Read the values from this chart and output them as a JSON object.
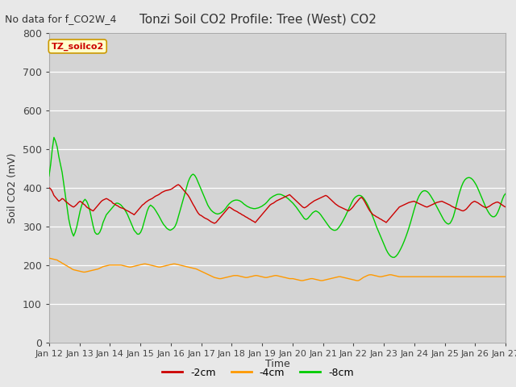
{
  "title": "Tonzi Soil CO2 Profile: Tree (West) CO2",
  "subtitle": "No data for f_CO2W_4",
  "xlabel": "Time",
  "ylabel": "Soil CO2 (mV)",
  "ylim": [
    0,
    800
  ],
  "yticks": [
    0,
    100,
    200,
    300,
    400,
    500,
    600,
    700,
    800
  ],
  "xtick_labels": [
    "Jan 12",
    "Jan 13",
    "Jan 14",
    "Jan 15",
    "Jan 16",
    "Jan 17",
    "Jan 18",
    "Jan 19",
    "Jan 20",
    "Jan 21",
    "Jan 22",
    "Jan 23",
    "Jan 24",
    "Jan 25",
    "Jan 26",
    "Jan 27"
  ],
  "legend_label": "TZ_soilco2",
  "line_colors": {
    "neg2cm": "#cc0000",
    "neg4cm": "#ff9900",
    "neg8cm": "#00cc00"
  },
  "bg_color": "#e8e8e8",
  "plot_bg_color": "#d4d4d4",
  "neg2cm_y": [
    400,
    397,
    390,
    380,
    375,
    370,
    365,
    368,
    372,
    370,
    365,
    362,
    358,
    355,
    352,
    350,
    353,
    357,
    362,
    365,
    362,
    358,
    355,
    350,
    347,
    345,
    342,
    340,
    345,
    350,
    355,
    360,
    365,
    368,
    370,
    372,
    370,
    367,
    365,
    360,
    358,
    355,
    353,
    350,
    348,
    347,
    345,
    342,
    340,
    338,
    335,
    333,
    330,
    335,
    340,
    345,
    350,
    355,
    358,
    362,
    365,
    368,
    370,
    372,
    375,
    378,
    380,
    382,
    385,
    388,
    390,
    392,
    393,
    394,
    395,
    397,
    400,
    403,
    406,
    408,
    405,
    400,
    395,
    390,
    385,
    380,
    373,
    365,
    357,
    350,
    342,
    335,
    330,
    328,
    325,
    322,
    320,
    318,
    315,
    312,
    310,
    308,
    310,
    315,
    320,
    325,
    330,
    335,
    340,
    345,
    350,
    348,
    345,
    342,
    340,
    338,
    335,
    333,
    330,
    328,
    325,
    323,
    320,
    318,
    315,
    313,
    310,
    315,
    320,
    325,
    330,
    335,
    340,
    345,
    350,
    355,
    358,
    360,
    363,
    366,
    368,
    370,
    372,
    374,
    376,
    378,
    380,
    382,
    378,
    374,
    370,
    366,
    362,
    358,
    354,
    350,
    348,
    350,
    353,
    357,
    360,
    363,
    366,
    368,
    370,
    372,
    374,
    376,
    378,
    380,
    378,
    374,
    370,
    366,
    362,
    358,
    355,
    352,
    350,
    348,
    346,
    344,
    342,
    340,
    343,
    347,
    352,
    358,
    363,
    368,
    373,
    375,
    370,
    363,
    355,
    347,
    340,
    335,
    330,
    328,
    325,
    323,
    320,
    318,
    315,
    313,
    310,
    315,
    320,
    325,
    330,
    335,
    340,
    345,
    350,
    352,
    354,
    356,
    358,
    360,
    362,
    363,
    364,
    365,
    363,
    361,
    359,
    357,
    355,
    353,
    351,
    350,
    352,
    354,
    356,
    358,
    360,
    362,
    363,
    364,
    365,
    363,
    361,
    359,
    357,
    355,
    352,
    350,
    348,
    346,
    345,
    343,
    341,
    340,
    342,
    345,
    350,
    355,
    360,
    363,
    365,
    363,
    361,
    358,
    355,
    352,
    350,
    348,
    350,
    352,
    355,
    358,
    360,
    362,
    363,
    361,
    358,
    355,
    352,
    350
  ],
  "neg4cm_y": [
    218,
    217,
    216,
    215,
    214,
    213,
    210,
    208,
    205,
    203,
    200,
    198,
    195,
    193,
    190,
    188,
    187,
    186,
    185,
    184,
    183,
    182,
    182,
    183,
    184,
    185,
    186,
    187,
    188,
    189,
    190,
    192,
    194,
    196,
    197,
    198,
    199,
    200,
    200,
    200,
    200,
    200,
    200,
    200,
    200,
    199,
    198,
    197,
    196,
    195,
    195,
    196,
    197,
    198,
    199,
    200,
    201,
    202,
    203,
    203,
    202,
    201,
    200,
    199,
    198,
    197,
    196,
    195,
    195,
    196,
    197,
    198,
    199,
    200,
    201,
    202,
    203,
    203,
    202,
    201,
    200,
    199,
    198,
    197,
    196,
    195,
    194,
    193,
    192,
    191,
    190,
    188,
    186,
    184,
    182,
    180,
    178,
    176,
    174,
    172,
    170,
    168,
    167,
    166,
    165,
    165,
    166,
    167,
    168,
    169,
    170,
    171,
    172,
    173,
    173,
    173,
    172,
    171,
    170,
    169,
    168,
    168,
    169,
    170,
    171,
    172,
    173,
    173,
    172,
    171,
    170,
    169,
    168,
    168,
    169,
    170,
    171,
    172,
    173,
    173,
    172,
    171,
    170,
    169,
    168,
    167,
    166,
    165,
    165,
    165,
    164,
    163,
    162,
    161,
    160,
    160,
    161,
    162,
    163,
    164,
    165,
    165,
    164,
    163,
    162,
    161,
    160,
    160,
    161,
    162,
    163,
    164,
    165,
    166,
    167,
    168,
    169,
    170,
    170,
    169,
    168,
    167,
    166,
    165,
    164,
    163,
    162,
    161,
    160,
    160,
    162,
    165,
    168,
    170,
    172,
    174,
    175,
    175,
    174,
    173,
    172,
    171,
    170,
    170,
    171,
    172,
    173,
    174,
    175,
    175,
    174,
    173,
    172,
    171,
    170,
    170,
    170,
    170,
    170,
    170,
    170,
    170,
    170,
    170,
    170,
    170,
    170,
    170,
    170,
    170,
    170,
    170,
    170,
    170,
    170,
    170,
    170,
    170,
    170,
    170,
    170,
    170,
    170,
    170,
    170,
    170,
    170,
    170,
    170,
    170,
    170,
    170,
    170,
    170,
    170,
    170,
    170,
    170,
    170,
    170,
    170,
    170,
    170,
    170,
    170,
    170,
    170,
    170,
    170,
    170,
    170,
    170,
    170,
    170,
    170,
    170,
    170,
    170,
    170,
    170
  ],
  "neg8cm_y": [
    430,
    460,
    500,
    530,
    520,
    505,
    480,
    460,
    440,
    410,
    380,
    350,
    320,
    300,
    285,
    275,
    285,
    300,
    320,
    340,
    355,
    365,
    370,
    365,
    355,
    340,
    320,
    300,
    285,
    280,
    280,
    285,
    295,
    310,
    320,
    330,
    335,
    340,
    345,
    350,
    355,
    360,
    360,
    358,
    355,
    350,
    345,
    338,
    330,
    320,
    310,
    300,
    290,
    285,
    280,
    280,
    285,
    295,
    310,
    325,
    340,
    350,
    355,
    352,
    348,
    342,
    335,
    328,
    320,
    312,
    305,
    300,
    295,
    292,
    290,
    292,
    295,
    300,
    310,
    325,
    340,
    355,
    370,
    385,
    400,
    415,
    425,
    432,
    435,
    432,
    425,
    415,
    405,
    395,
    385,
    375,
    365,
    355,
    348,
    342,
    338,
    335,
    333,
    332,
    333,
    335,
    338,
    342,
    347,
    353,
    358,
    362,
    365,
    367,
    368,
    368,
    367,
    365,
    362,
    358,
    355,
    352,
    350,
    348,
    347,
    346,
    346,
    347,
    348,
    350,
    352,
    355,
    358,
    362,
    367,
    372,
    375,
    378,
    380,
    382,
    383,
    383,
    382,
    380,
    378,
    375,
    372,
    368,
    364,
    360,
    355,
    350,
    344,
    338,
    332,
    326,
    320,
    318,
    320,
    325,
    330,
    335,
    338,
    340,
    338,
    335,
    330,
    324,
    318,
    312,
    306,
    300,
    295,
    292,
    290,
    290,
    292,
    297,
    303,
    310,
    318,
    326,
    335,
    344,
    353,
    362,
    370,
    375,
    378,
    380,
    380,
    378,
    374,
    368,
    361,
    353,
    344,
    334,
    323,
    312,
    300,
    290,
    280,
    270,
    260,
    250,
    240,
    232,
    226,
    222,
    220,
    220,
    223,
    228,
    235,
    243,
    252,
    262,
    273,
    285,
    298,
    312,
    327,
    342,
    356,
    368,
    378,
    385,
    390,
    392,
    392,
    390,
    386,
    380,
    373,
    366,
    358,
    350,
    342,
    334,
    326,
    318,
    312,
    308,
    306,
    308,
    315,
    325,
    340,
    358,
    375,
    390,
    403,
    413,
    420,
    424,
    426,
    426,
    424,
    420,
    414,
    407,
    398,
    388,
    378,
    368,
    358,
    348,
    340,
    333,
    328,
    325,
    325,
    328,
    335,
    345,
    357,
    370,
    380,
    385
  ]
}
